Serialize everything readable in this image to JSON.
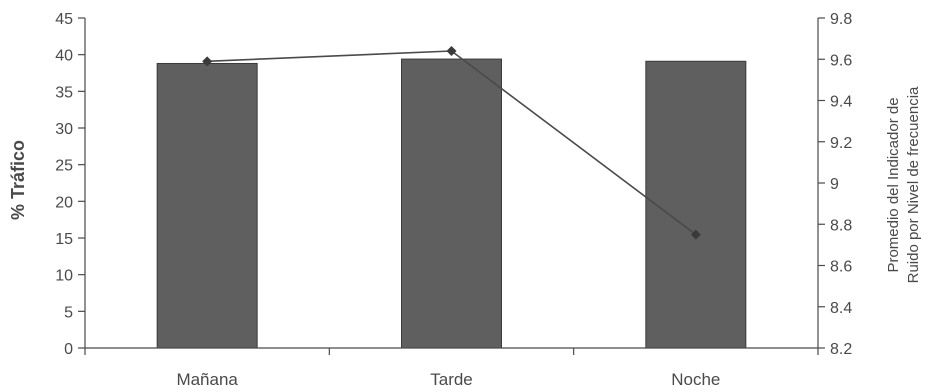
{
  "chart_data": {
    "type": "bar",
    "categories": [
      "Mañana",
      "Tarde",
      "Noche"
    ],
    "series": [
      {
        "type": "bar",
        "axis": "left",
        "values": [
          38.8,
          39.4,
          39.1
        ],
        "color": "#5f5f5f"
      },
      {
        "type": "line",
        "axis": "right",
        "values": [
          9.59,
          9.64,
          8.75
        ],
        "color": "#4a4a4a"
      }
    ],
    "ylabel": "% Tráfico",
    "ylabel_right": [
      "Promedio del Indicador de",
      "Ruido por Nivel de frecuencia"
    ],
    "ylim": [
      0,
      45
    ],
    "yticks": [
      0,
      5,
      10,
      15,
      20,
      25,
      30,
      35,
      40,
      45
    ],
    "ylim_right": [
      8.2,
      9.8
    ],
    "yticks_right": [
      "8.2",
      "8.4",
      "8.6",
      "8.8",
      "9",
      "9.2",
      "9.4",
      "9.6",
      "9.8"
    ],
    "grid": false,
    "legend": "none"
  }
}
